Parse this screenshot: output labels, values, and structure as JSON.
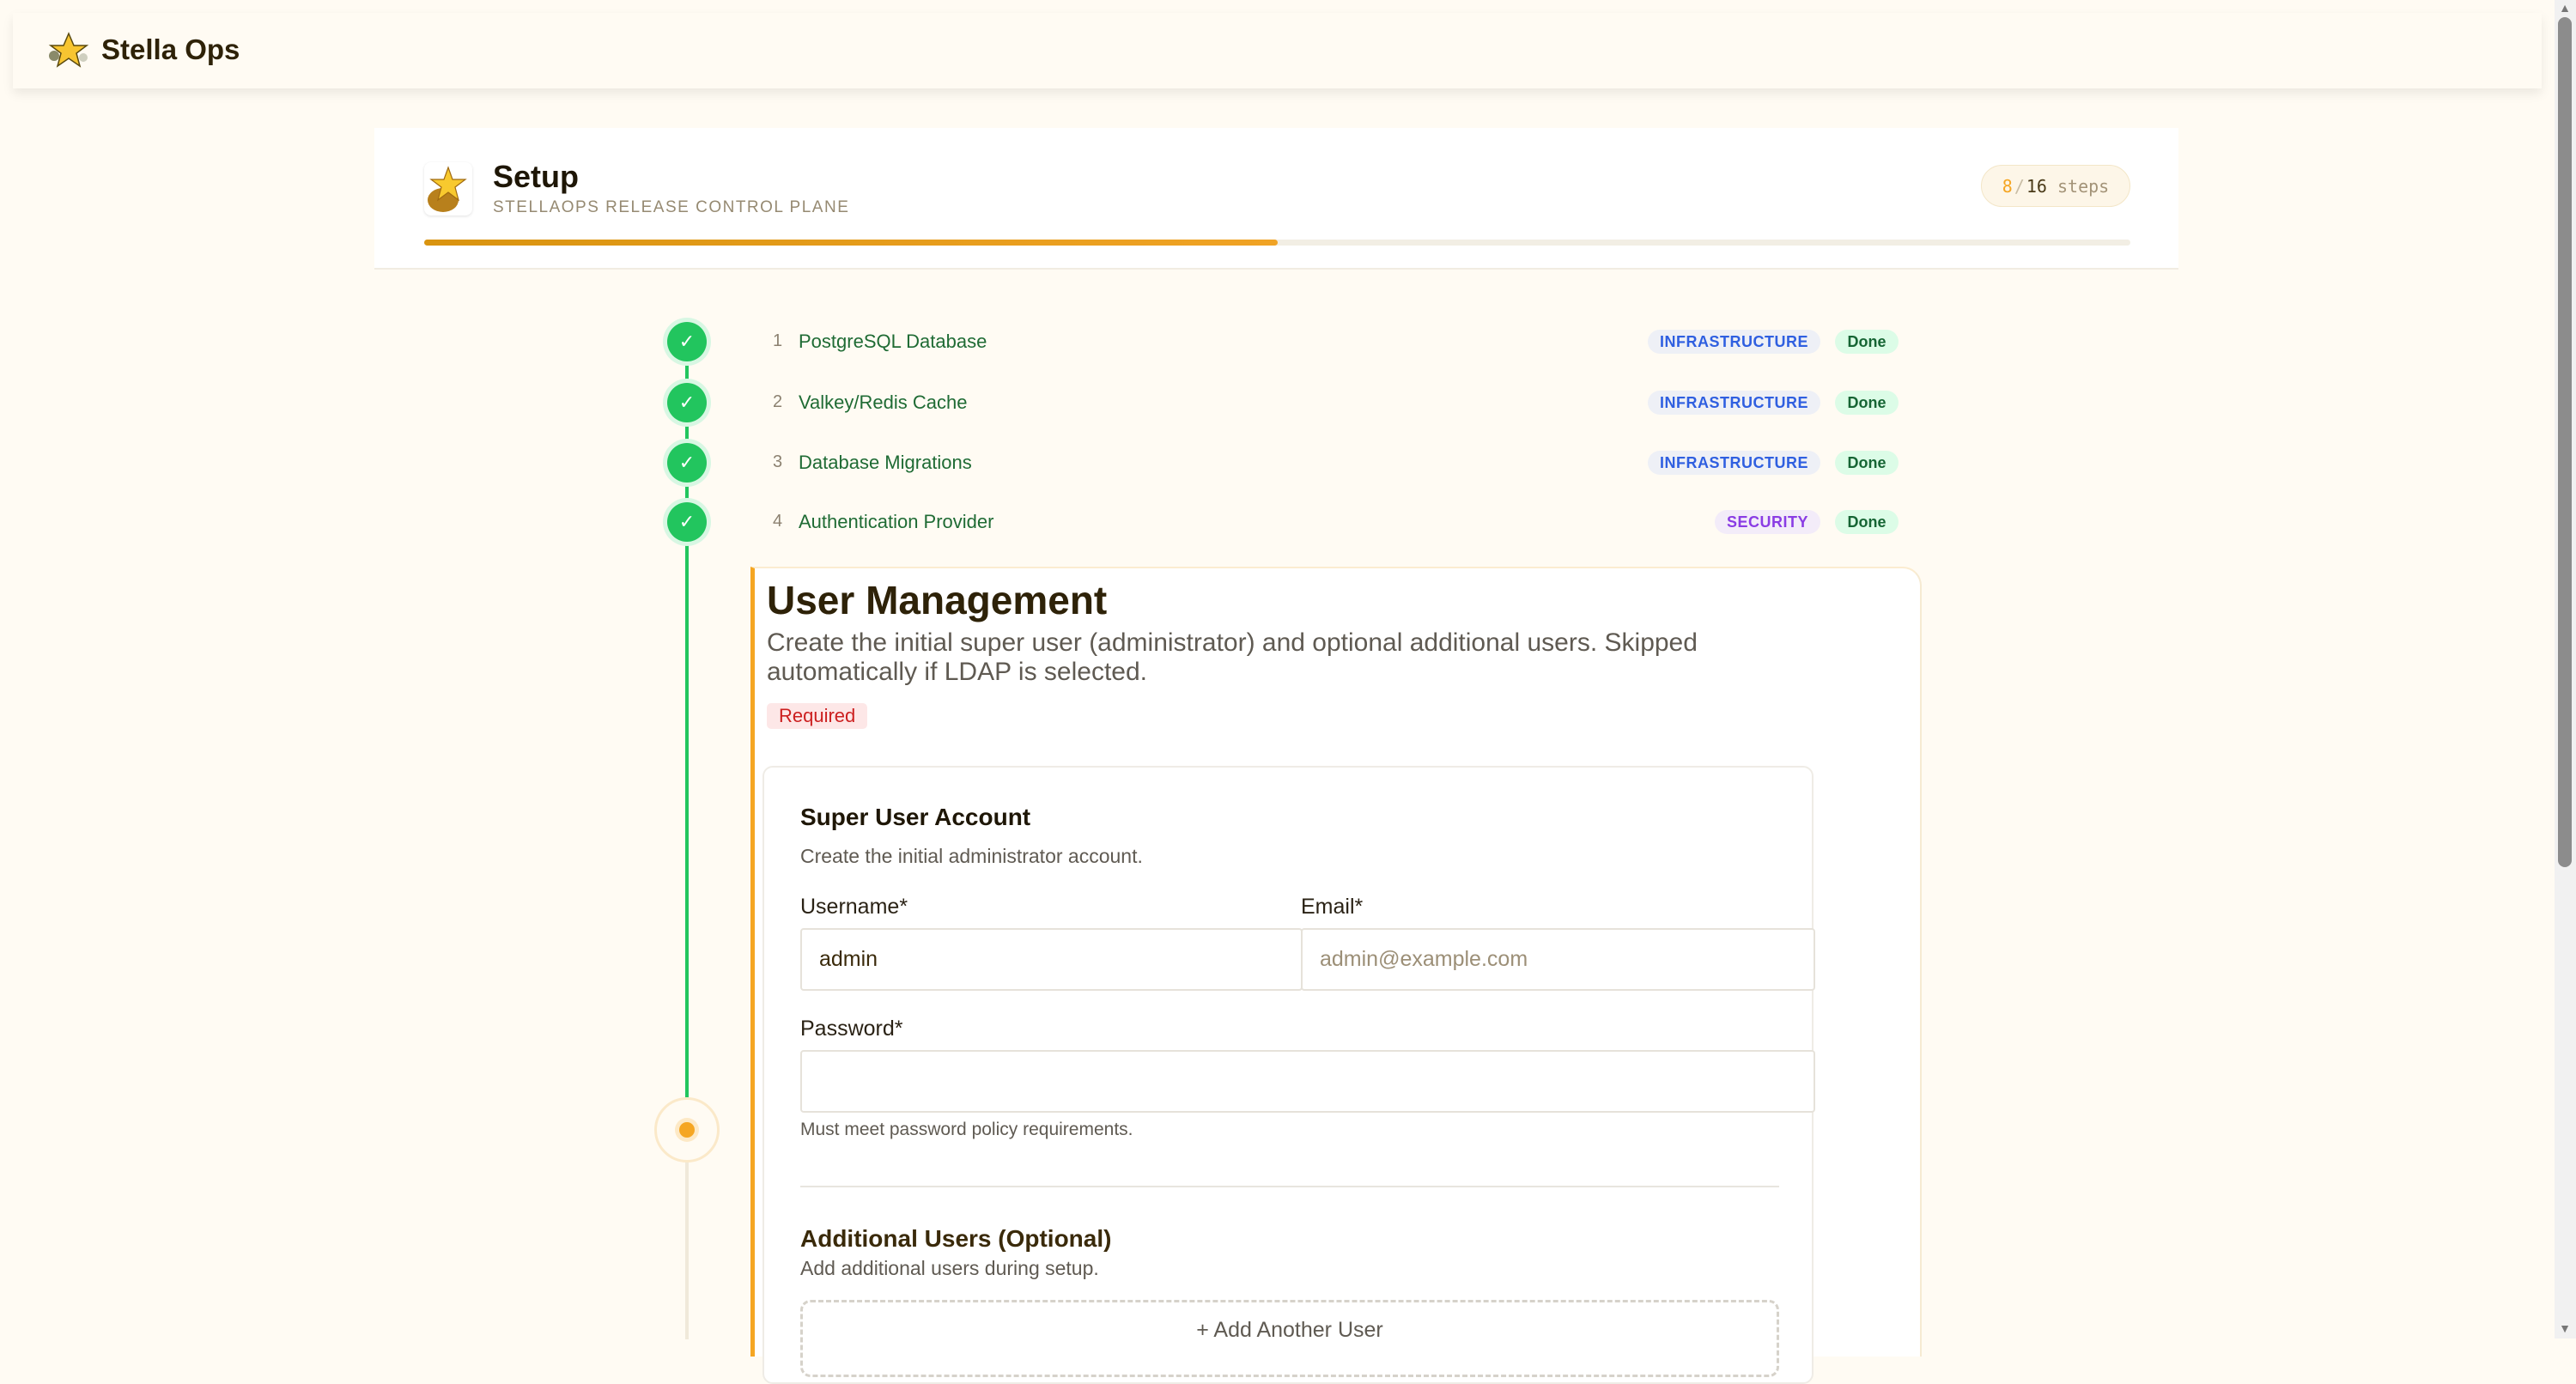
{
  "app": {
    "title": "Stella Ops"
  },
  "setup": {
    "title": "Setup",
    "subtitle": "STELLAOPS RELEASE CONTROL PLANE",
    "progress_percent": 50,
    "steps_done": "8",
    "steps_sep": "/",
    "steps_total": "16",
    "steps_word": "steps"
  },
  "steps": [
    {
      "num": "1",
      "label": "PostgreSQL Database",
      "category": "INFRASTRUCTURE",
      "status": "Done"
    },
    {
      "num": "2",
      "label": "Valkey/Redis Cache",
      "category": "INFRASTRUCTURE",
      "status": "Done"
    },
    {
      "num": "3",
      "label": "Database Migrations",
      "category": "INFRASTRUCTURE",
      "status": "Done"
    },
    {
      "num": "4",
      "label": "Authentication Provider",
      "category": "SECURITY",
      "status": "Done"
    }
  ],
  "current_step": {
    "title": "User Management",
    "description": "Create the initial super user (administrator) and optional additional users. Skipped automatically if LDAP is selected.",
    "required_label": "Required",
    "super_user": {
      "title": "Super User Account",
      "subtitle": "Create the initial administrator account.",
      "username_label": "Username*",
      "username_value": "admin",
      "email_label": "Email*",
      "email_placeholder": "admin@example.com",
      "password_label": "Password*",
      "password_help": "Must meet password policy requirements."
    },
    "additional": {
      "title": "Additional Users (Optional)",
      "subtitle": "Add additional users during setup.",
      "add_button": "+ Add Another User"
    }
  },
  "colors": {
    "accent": "#f5a623",
    "success": "#22c55e",
    "infra": "#2f5fe0",
    "security": "#8a3ce4",
    "required": "#cc1f1f"
  }
}
